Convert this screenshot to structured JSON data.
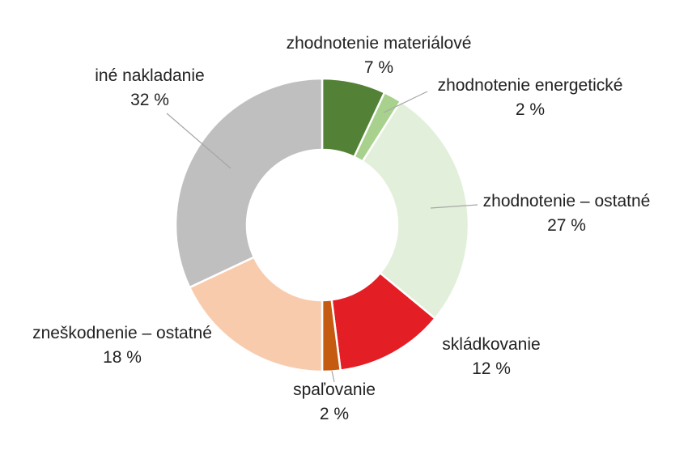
{
  "chart_data": {
    "type": "pie",
    "title": "",
    "slices": [
      {
        "label": "zhodnotenie materiálové",
        "value": 7,
        "value_text": "7 %",
        "color": "#538135"
      },
      {
        "label": "zhodnotenie energetické",
        "value": 2,
        "value_text": "2 %",
        "color": "#a9d18e"
      },
      {
        "label": "zhodnotenie – ostatné",
        "value": 27,
        "value_text": "27 %",
        "color": "#e2efda"
      },
      {
        "label": "skládkovanie",
        "value": 12,
        "value_text": "12 %",
        "color": "#e31e24"
      },
      {
        "label": "spaľovanie",
        "value": 2,
        "value_text": "2 %",
        "color": "#c55a11"
      },
      {
        "label": "zneškodnenie – ostatné",
        "value": 18,
        "value_text": "18 %",
        "color": "#f8cbad"
      },
      {
        "label": "iné nakladanie",
        "value": 32,
        "value_text": "32 %",
        "color": "#bfbfbf"
      }
    ],
    "donut": true,
    "legend": "none",
    "data_labels": "outside with leader lines"
  }
}
